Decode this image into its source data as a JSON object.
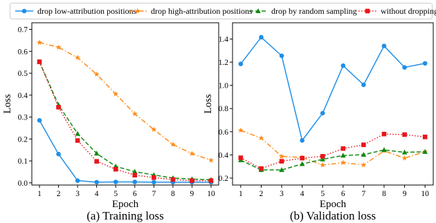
{
  "legend": [
    {
      "label": "drop low-attribution positions",
      "color": "#1f8fe8",
      "marker": "circle",
      "dash": "solid"
    },
    {
      "label": "drop high-attribution positions",
      "color": "#ff8c1a",
      "marker": "star",
      "dash": "dashdot"
    },
    {
      "label": "drop by random sampling",
      "color": "#138a13",
      "marker": "triangle",
      "dash": "dashed"
    },
    {
      "label": "without dropping",
      "color": "#e8151b",
      "marker": "square",
      "dash": "dotted"
    }
  ],
  "chart_data": [
    {
      "type": "line",
      "caption": "(a) Training loss",
      "xlabel": "Epoch",
      "ylabel": "Loss",
      "x": [
        1,
        2,
        3,
        4,
        5,
        6,
        7,
        8,
        9,
        10
      ],
      "xlim": [
        0.6,
        10.4
      ],
      "ylim": [
        -0.01,
        0.73
      ],
      "yticks": [
        0.0,
        0.1,
        0.2,
        0.3,
        0.4,
        0.5,
        0.6,
        0.7
      ],
      "ytick_labels": [
        "0.0",
        "0.1",
        "0.2",
        "0.3",
        "0.4",
        "0.5",
        "0.6",
        "0.7"
      ],
      "grid": false,
      "series": [
        {
          "name": "drop low-attribution positions",
          "values": [
            0.285,
            0.131,
            0.01,
            0.003,
            0.004,
            0.004,
            0.003,
            0.003,
            0.003,
            0.003
          ]
        },
        {
          "name": "drop high-attribution positions",
          "values": [
            0.64,
            0.618,
            0.571,
            0.495,
            0.405,
            0.315,
            0.243,
            0.175,
            0.133,
            0.103
          ]
        },
        {
          "name": "drop by random sampling",
          "values": [
            0.552,
            0.355,
            0.224,
            0.134,
            0.075,
            0.051,
            0.036,
            0.022,
            0.017,
            0.014
          ]
        },
        {
          "name": "without dropping",
          "values": [
            0.552,
            0.345,
            0.193,
            0.098,
            0.062,
            0.035,
            0.024,
            0.015,
            0.01,
            0.01
          ]
        }
      ]
    },
    {
      "type": "line",
      "caption": "(b) Validation loss",
      "xlabel": "Epoch",
      "ylabel": "Loss",
      "x": [
        1,
        2,
        3,
        4,
        5,
        6,
        7,
        8,
        9,
        10
      ],
      "xlim": [
        0.6,
        10.4
      ],
      "ylim": [
        0.14,
        1.54
      ],
      "yticks": [
        0.2,
        0.4,
        0.6,
        0.8,
        1.0,
        1.2,
        1.4
      ],
      "ytick_labels": [
        "0.2",
        "0.4",
        "0.6",
        "0.8",
        "1.0",
        "1.2",
        "1.4"
      ],
      "grid": false,
      "series": [
        {
          "name": "drop low-attribution positions",
          "values": [
            1.185,
            1.415,
            1.255,
            0.525,
            0.76,
            1.17,
            1.005,
            1.34,
            1.155,
            1.19
          ]
        },
        {
          "name": "drop high-attribution positions",
          "values": [
            0.612,
            0.545,
            0.387,
            0.378,
            0.312,
            0.333,
            0.313,
            0.435,
            0.372,
            0.428
          ]
        },
        {
          "name": "drop by random sampling",
          "values": [
            0.355,
            0.27,
            0.27,
            0.322,
            0.362,
            0.395,
            0.402,
            0.443,
            0.422,
            0.427
          ]
        },
        {
          "name": "without dropping",
          "values": [
            0.375,
            0.282,
            0.345,
            0.372,
            0.388,
            0.455,
            0.487,
            0.58,
            0.575,
            0.555
          ]
        }
      ]
    }
  ]
}
